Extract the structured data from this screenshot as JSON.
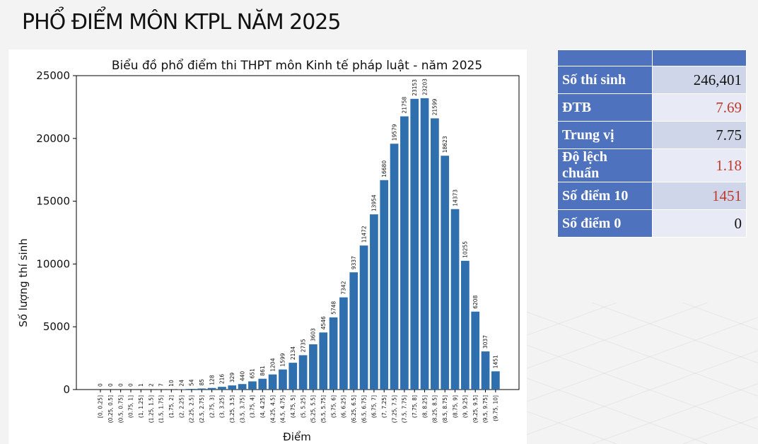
{
  "page": {
    "title": "PHỔ ĐIỂM MÔN KTPL NĂM 2025"
  },
  "stats": {
    "rows": [
      {
        "label": "Số thí sinh",
        "value": "246,401",
        "color": "#111111"
      },
      {
        "label": "ĐTB",
        "value": "7.69",
        "color": "#c0392b"
      },
      {
        "label": "Trung vị",
        "value": "7.75",
        "color": "#111111"
      },
      {
        "label": "Độ lệch chuẩn",
        "value": "1.18",
        "color": "#c0392b"
      },
      {
        "label": "Số điểm 10",
        "value": "1451",
        "color": "#c0392b"
      },
      {
        "label": "Số điểm 0",
        "value": "0",
        "color": "#111111"
      }
    ]
  },
  "chart_data": {
    "type": "bar",
    "title": "Biểu đồ phổ điểm thi THPT môn Kinh tế pháp luật - năm 2025",
    "xlabel": "Điểm",
    "ylabel": "Số lượng thí sinh",
    "ylim": [
      0,
      25000
    ],
    "yticks": [
      "0",
      "5000",
      "10000",
      "15000",
      "20000",
      "25000"
    ],
    "bar_color": "#2f6fad",
    "grid": false,
    "categories": [
      "[0, 0.25]",
      "(0.25, 0.5]",
      "(0.5, 0.75]",
      "(0.75, 1]",
      "(1, 1.25]",
      "(1.25, 1.5]",
      "(1.5, 1.75]",
      "(1.75, 2]",
      "(2, 2.25]",
      "(2.25, 2.5]",
      "(2.5, 2.75]",
      "(2.75, 3]",
      "(3, 3.25]",
      "(3.25, 3.5]",
      "(3.5, 3.75]",
      "(3.75, 4]",
      "(4, 4.25]",
      "(4.25, 4.5]",
      "(4.5, 4.75]",
      "(4.75, 5]",
      "(5, 5.25]",
      "(5.25, 5.5]",
      "(5.5, 5.75]",
      "(5.75, 6]",
      "(6, 6.25]",
      "(6.25, 6.5]",
      "(6.5, 6.75]",
      "(6.75, 7]",
      "(7, 7.25]",
      "(7.25, 7.5]",
      "(7.5, 7.75]",
      "(7.75, 8]",
      "(8, 8.25]",
      "(8.25, 8.5]",
      "(8.5, 8.75]",
      "(8.75, 9]",
      "(9, 9.25]",
      "(9.25, 9.5]",
      "(9.5, 9.75]",
      "(9.75, 10]"
    ],
    "values": [
      0,
      0,
      0,
      0,
      1,
      2,
      7,
      10,
      24,
      54,
      85,
      128,
      216,
      329,
      440,
      651,
      861,
      1204,
      1599,
      2134,
      2735,
      3603,
      4546,
      5748,
      7342,
      9337,
      11472,
      13954,
      16680,
      19579,
      21758,
      23153,
      23203,
      21599,
      18623,
      14373,
      10255,
      6208,
      3037,
      1451
    ]
  }
}
